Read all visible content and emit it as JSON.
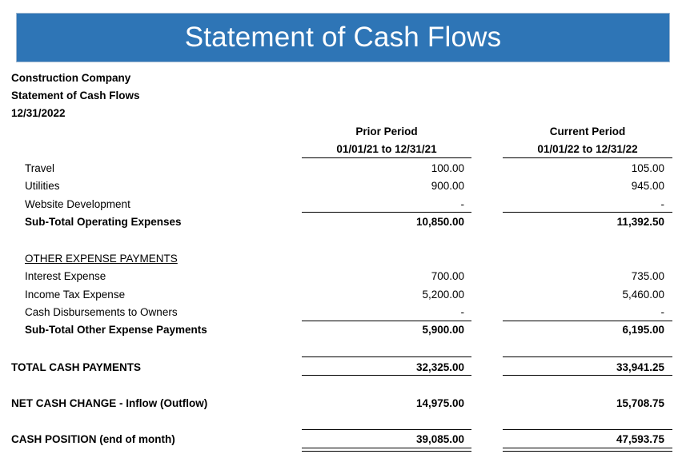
{
  "banner_title": "Statement of Cash Flows",
  "header": {
    "company": "Construction Company",
    "statement": "Statement of Cash Flows",
    "date": "12/31/2022"
  },
  "columns": {
    "prior": {
      "title": "Prior Period",
      "range": "01/01/21 to 12/31/21"
    },
    "current": {
      "title": "Current Period",
      "range": "01/01/22 to 12/31/22"
    }
  },
  "rows": {
    "travel": {
      "label": "Travel",
      "prior": "100.00",
      "current": "105.00"
    },
    "utilities": {
      "label": "Utilities",
      "prior": "900.00",
      "current": "945.00"
    },
    "website": {
      "label": "Website Development",
      "prior": "-",
      "current": "-"
    },
    "subtotal_operating": {
      "label": "Sub-Total Operating Expenses",
      "prior": "10,850.00",
      "current": "11,392.50"
    },
    "other_header": {
      "label": "OTHER EXPENSE PAYMENTS"
    },
    "interest": {
      "label": "Interest Expense",
      "prior": "700.00",
      "current": "735.00"
    },
    "income_tax": {
      "label": "Income Tax Expense",
      "prior": "5,200.00",
      "current": "5,460.00"
    },
    "disbursements": {
      "label": "Cash Disbursements to Owners",
      "prior": "-",
      "current": "-"
    },
    "subtotal_other": {
      "label": "Sub-Total Other Expense Payments",
      "prior": "5,900.00",
      "current": "6,195.00"
    },
    "total_payments": {
      "label": "TOTAL CASH PAYMENTS",
      "prior": "32,325.00",
      "current": "33,941.25"
    },
    "net_change": {
      "label": "NET CASH CHANGE - Inflow (Outflow)",
      "prior": "14,975.00",
      "current": "15,708.75"
    },
    "cash_position": {
      "label": "CASH POSITION (end of month)",
      "prior": "39,085.00",
      "current": "47,593.75"
    }
  },
  "colors": {
    "banner": "#2E75B6",
    "banner_text": "#FFFFFF"
  }
}
